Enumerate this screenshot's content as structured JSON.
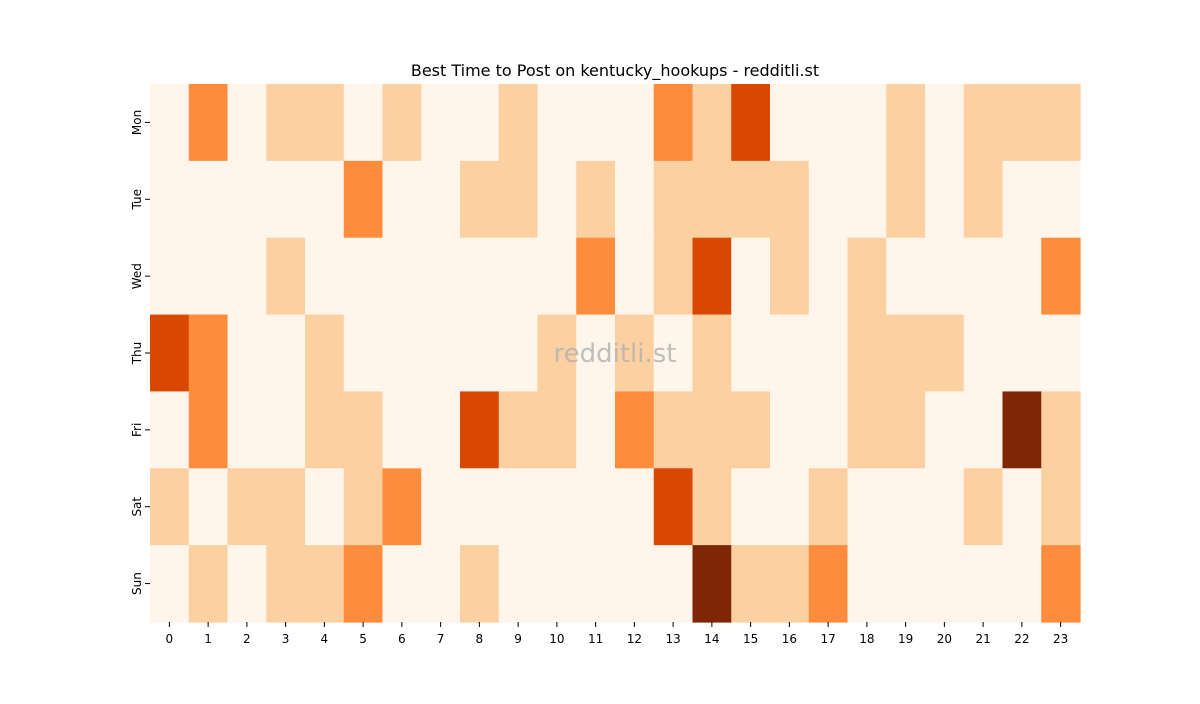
{
  "chart_data": {
    "type": "heatmap",
    "title": "Best Time to Post on kentucky_hookups - redditli.st",
    "xlabel": "",
    "ylabel": "",
    "x_categories": [
      "0",
      "1",
      "2",
      "3",
      "4",
      "5",
      "6",
      "7",
      "8",
      "9",
      "10",
      "11",
      "12",
      "13",
      "14",
      "15",
      "16",
      "17",
      "18",
      "19",
      "20",
      "21",
      "22",
      "23"
    ],
    "y_categories": [
      "Mon",
      "Tue",
      "Wed",
      "Thu",
      "Fri",
      "Sat",
      "Sun"
    ],
    "values": [
      [
        0,
        2,
        0,
        1,
        1,
        0,
        1,
        0,
        0,
        1,
        0,
        0,
        0,
        2,
        1,
        3,
        0,
        0,
        0,
        1,
        0,
        1,
        1,
        1
      ],
      [
        0,
        0,
        0,
        0,
        0,
        2,
        0,
        0,
        1,
        1,
        0,
        1,
        0,
        1,
        1,
        1,
        1,
        0,
        0,
        1,
        0,
        1,
        0,
        0
      ],
      [
        0,
        0,
        0,
        1,
        0,
        0,
        0,
        0,
        0,
        0,
        0,
        2,
        0,
        1,
        3,
        0,
        1,
        0,
        1,
        0,
        0,
        0,
        0,
        2
      ],
      [
        3,
        2,
        0,
        0,
        1,
        0,
        0,
        0,
        0,
        0,
        1,
        0,
        1,
        0,
        1,
        0,
        0,
        0,
        1,
        1,
        1,
        0,
        0,
        0
      ],
      [
        0,
        2,
        0,
        0,
        1,
        1,
        0,
        0,
        3,
        1,
        1,
        0,
        2,
        1,
        1,
        1,
        0,
        0,
        1,
        1,
        0,
        0,
        4,
        1
      ],
      [
        1,
        0,
        1,
        1,
        0,
        1,
        2,
        0,
        0,
        0,
        0,
        0,
        0,
        3,
        1,
        0,
        0,
        1,
        0,
        0,
        0,
        1,
        0,
        1
      ],
      [
        0,
        1,
        0,
        1,
        1,
        2,
        0,
        0,
        1,
        0,
        0,
        0,
        0,
        0,
        4,
        1,
        1,
        2,
        0,
        0,
        0,
        0,
        0,
        2
      ]
    ],
    "color_scale": [
      "#fff5eb",
      "#fdd0a2",
      "#fd8d3c",
      "#d94801",
      "#7f2704"
    ],
    "colorbar": false,
    "grid": false,
    "watermark": "redditli.st"
  }
}
